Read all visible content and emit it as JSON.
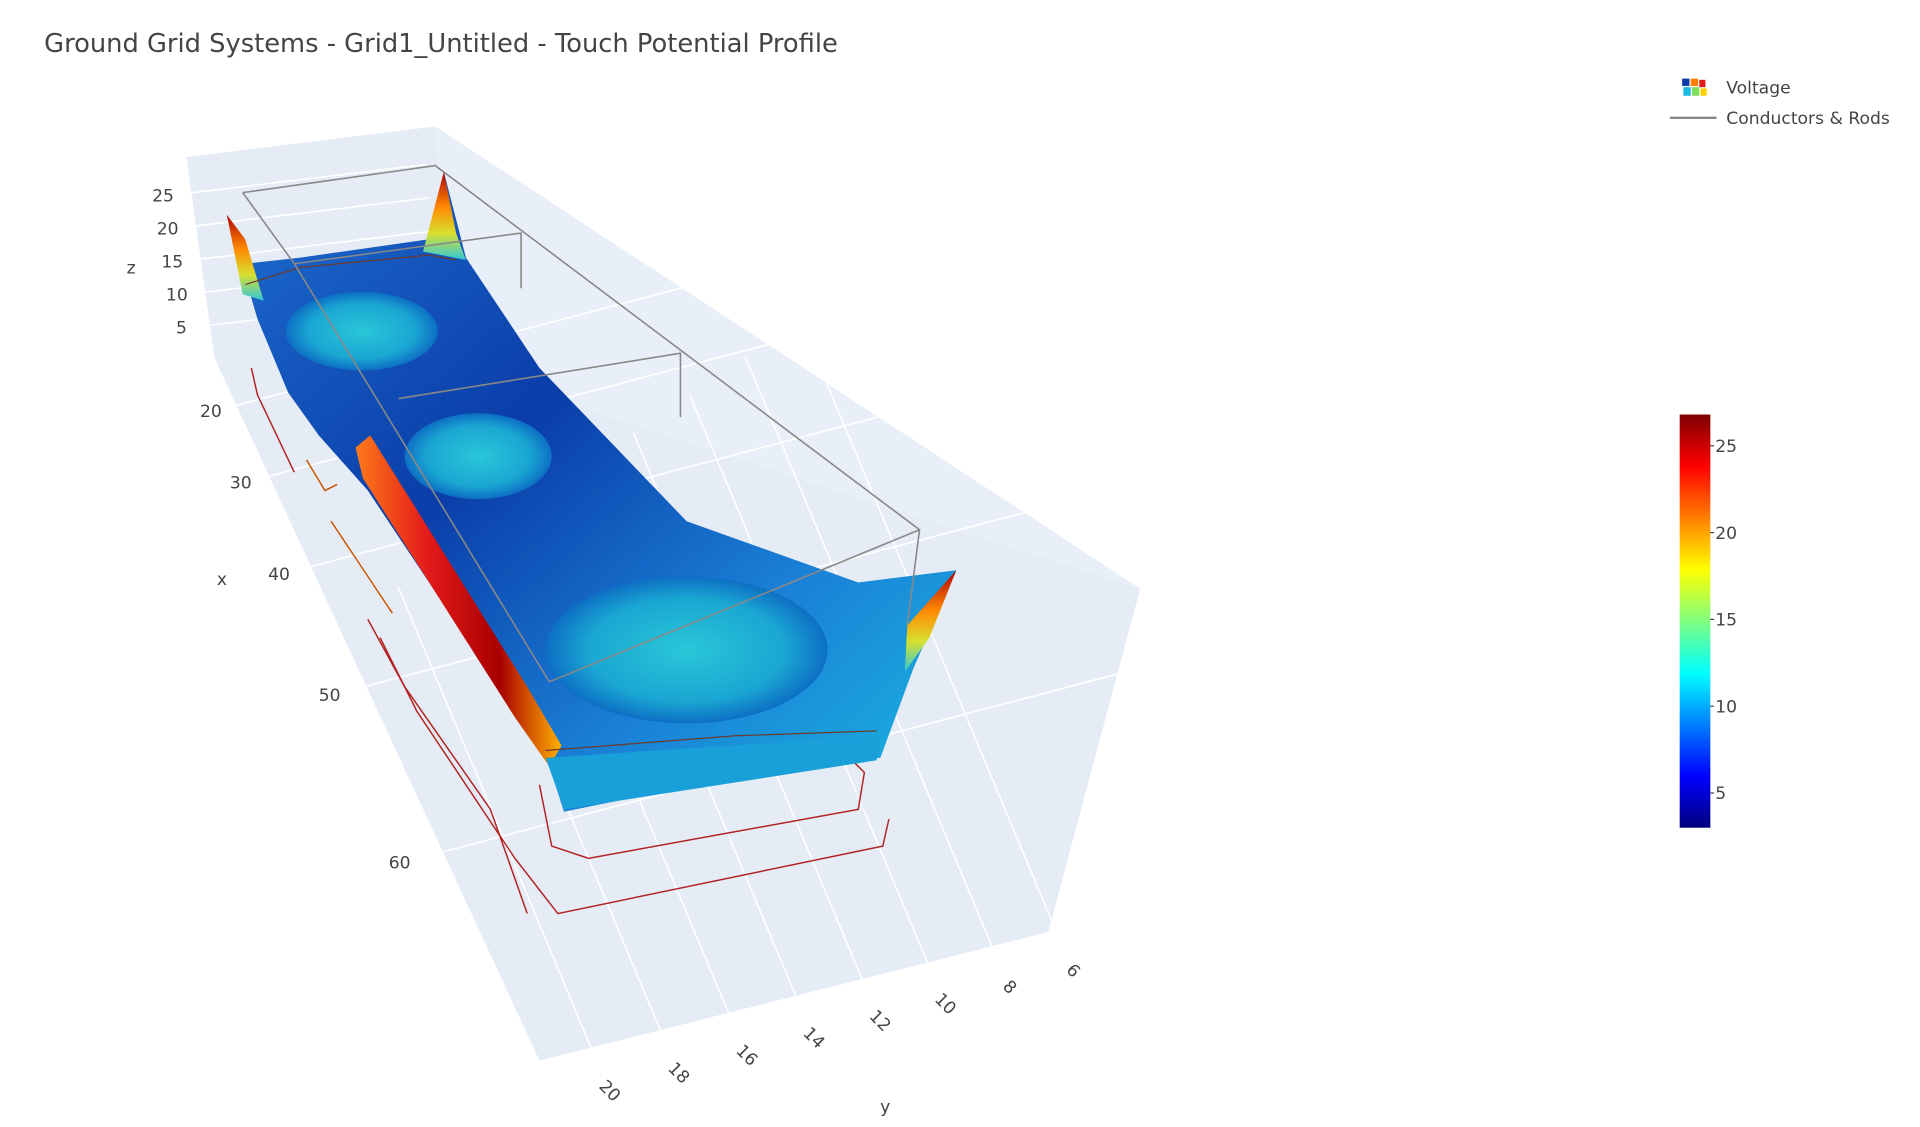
{
  "chart_data": {
    "type": "surface3d",
    "title": "Ground Grid Systems - Grid1_Untitled - Touch Potential Profile",
    "series": [
      {
        "name": "Voltage",
        "colorscale": [
          "#00007f",
          "#0000ff",
          "#007fff",
          "#00ffff",
          "#7fff7f",
          "#ffff00",
          "#ff7f00",
          "#ff0000",
          "#7f0000"
        ]
      },
      {
        "name": "Conductors & Rods",
        "color": "#888888"
      }
    ],
    "xaxis": {
      "title": "x",
      "ticks": [
        20,
        30,
        40,
        50,
        60
      ]
    },
    "yaxis": {
      "title": "y",
      "ticks": [
        6,
        8,
        10,
        12,
        14,
        16,
        18,
        20
      ]
    },
    "zaxis": {
      "title": "z",
      "ticks": [
        5,
        10,
        15,
        20,
        25
      ]
    },
    "colorbar": {
      "range": [
        3,
        26.8
      ],
      "ticks": [
        5,
        10,
        15,
        20,
        25
      ]
    }
  }
}
